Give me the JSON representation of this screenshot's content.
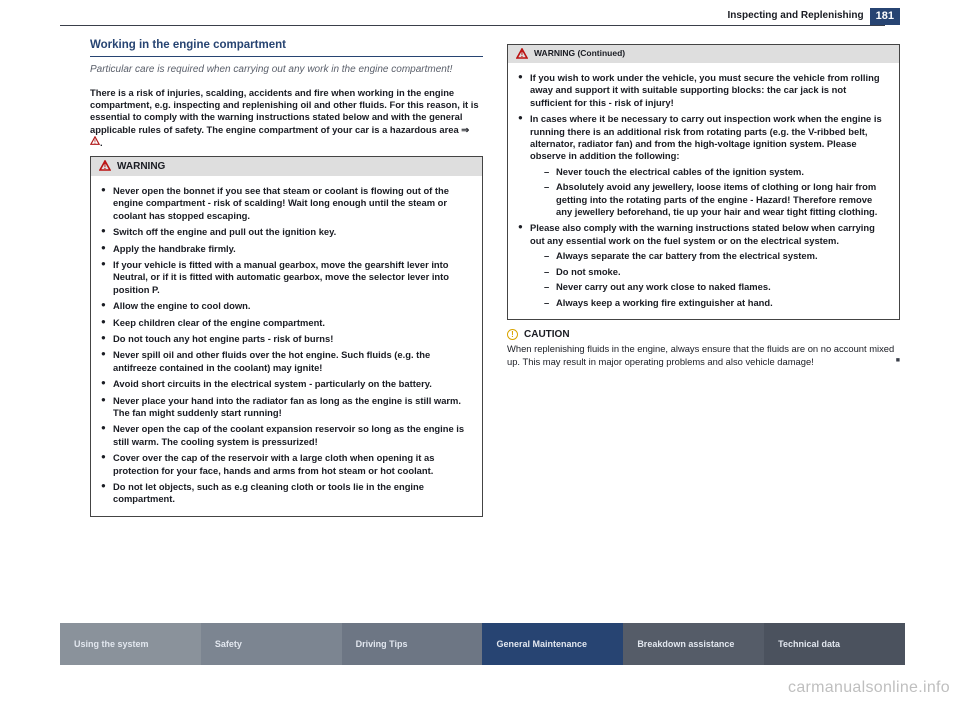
{
  "header": {
    "chapter": "Inspecting and Replenishing",
    "page_number": "181"
  },
  "section": {
    "title": "Working in the engine compartment",
    "subtitle": "Particular care is required when carrying out any work in the engine compartment!",
    "intro": "There is a risk of injuries, scalding, accidents and fire when working in the engine compartment, e.g. inspecting and replenishing oil and other fluids. For this reason, it is essential to comply with the warning instructions stated below and with the general applicable rules of safety. The engine compartment of your car is a hazardous area ⇒ "
  },
  "warning": {
    "label": "WARNING",
    "items": [
      "Never open the bonnet if you see that steam or coolant is flowing out of the engine compartment - risk of scalding! Wait long enough until the steam or coolant has stopped escaping.",
      "Switch off the engine and pull out the ignition key.",
      "Apply the handbrake firmly.",
      "If your vehicle is fitted with a manual gearbox, move the gearshift lever into Neutral, or if it is fitted with automatic gearbox, move the selector lever into position P.",
      "Allow the engine to cool down.",
      "Keep children clear of the engine compartment.",
      "Do not touch any hot engine parts - risk of burns!",
      "Never spill oil and other fluids over the hot engine. Such fluids (e.g. the antifreeze contained in the coolant) may ignite!",
      "Avoid short circuits in the electrical system - particularly on the battery.",
      "Never place your hand into the radiator fan as long as the engine is still warm. The fan might suddenly start running!",
      "Never open the cap of the coolant expansion reservoir so long as the engine is still warm. The cooling system is pressurized!",
      "Cover over the cap of the reservoir with a large cloth when opening it as protection for your face, hands and arms from hot steam or hot coolant.",
      "Do not let objects, such as e.g cleaning cloth or tools lie in the engine compartment."
    ]
  },
  "warning_cont": {
    "label": "WARNING (Continued)",
    "items": [
      {
        "text": "If you wish to work under the vehicle, you must secure the vehicle from rolling away and support it with suitable supporting blocks: the car jack is not sufficient for this - risk of injury!"
      },
      {
        "text": "In cases where it be necessary to carry out inspection work when the engine is running there is an additional risk from rotating parts (e.g. the V-ribbed belt, alternator, radiator fan) and from the high-voltage ignition system. Please observe in addition the following:",
        "sub": [
          "Never touch the electrical cables of the ignition system.",
          "Absolutely avoid any jewellery, loose items of clothing or long hair from getting into the rotating parts of the engine - Hazard! Therefore remove any jewellery beforehand, tie up your hair and wear tight fitting clothing."
        ]
      },
      {
        "text": "Please also comply with the warning instructions stated below when carrying out any essential work on the fuel system or on the electrical system.",
        "sub": [
          "Always separate the car battery from the electrical system.",
          "Do not smoke.",
          "Never carry out any work close to naked flames.",
          "Always keep a working fire extinguisher at hand."
        ]
      }
    ]
  },
  "caution": {
    "label": "CAUTION",
    "text": "When replenishing fluids in the engine, always ensure that the fluids are on no account mixed up. This may result in major operating problems and also vehicle damage!"
  },
  "tabs": [
    {
      "label": "Using the system",
      "bg": "#8a929b"
    },
    {
      "label": "Safety",
      "bg": "#7c8591"
    },
    {
      "label": "Driving Tips",
      "bg": "#6d7684"
    },
    {
      "label": "General Maintenance",
      "bg": "#274472"
    },
    {
      "label": "Breakdown assistance",
      "bg": "#555c68"
    },
    {
      "label": "Technical data",
      "bg": "#4b525e"
    }
  ],
  "watermark": "carmanualsonline.info",
  "colors": {
    "accent": "#274472",
    "warn_red": "#b11a1a",
    "caution_amber": "#d9a400",
    "tab_text": "#e2e7ef"
  }
}
